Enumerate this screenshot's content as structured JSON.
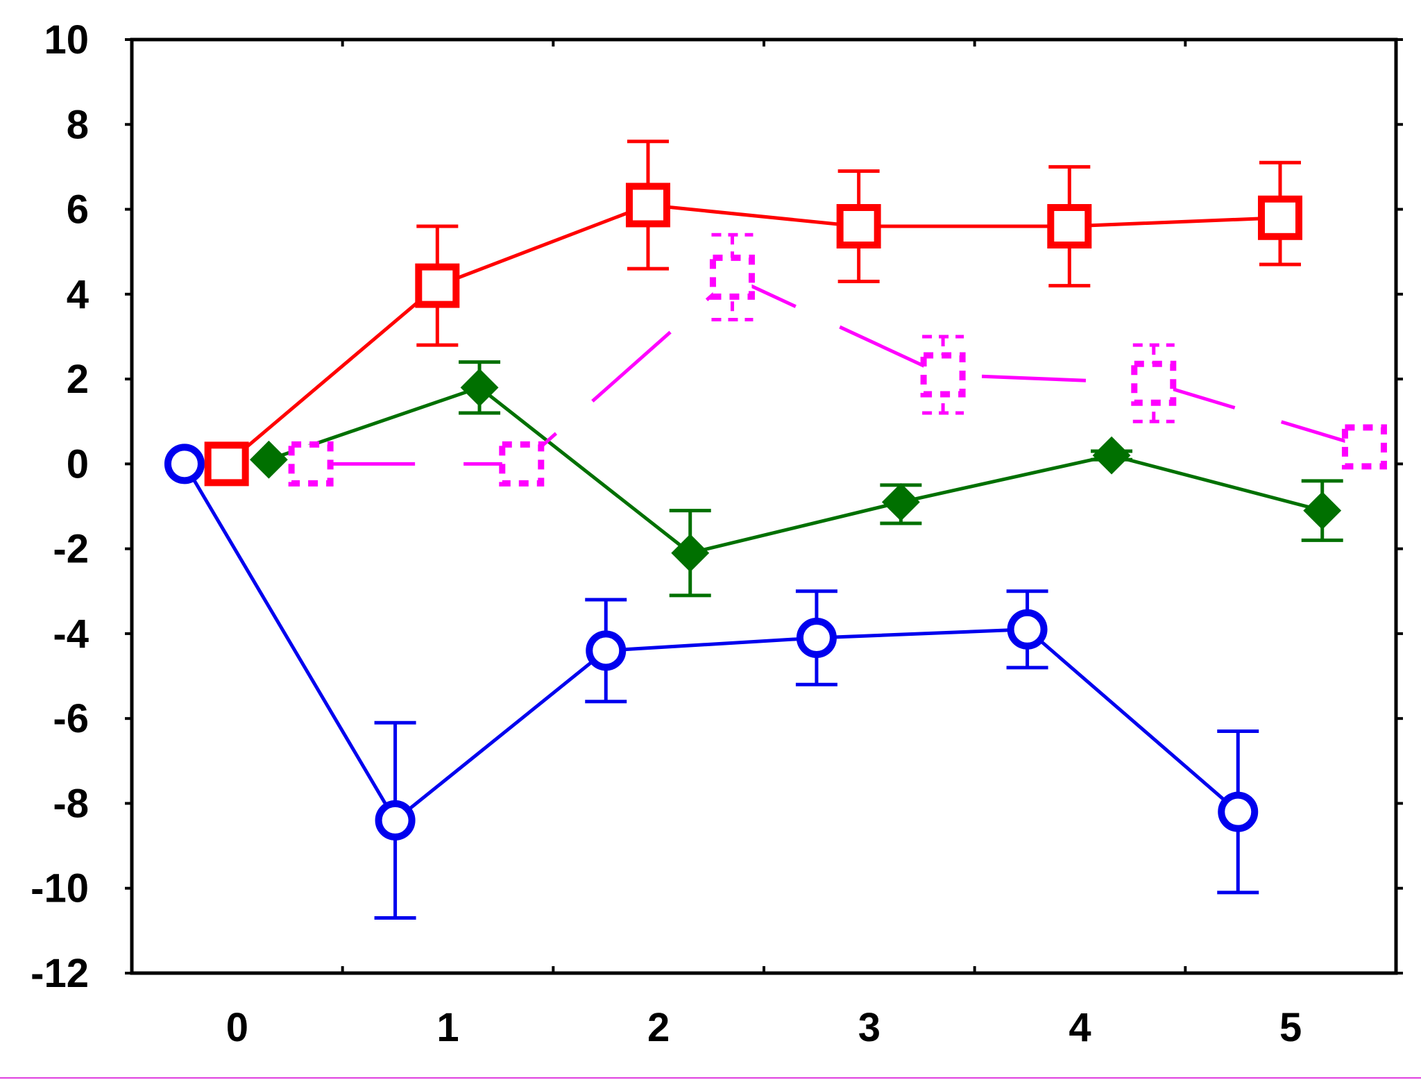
{
  "chart_data": {
    "type": "line",
    "title": "",
    "xlabel": "",
    "ylabel": "",
    "categories": [
      "0",
      "1",
      "2",
      "3",
      "4",
      "5"
    ],
    "x_ticks": [
      "0",
      "1",
      "2",
      "3",
      "4",
      "5"
    ],
    "y_ticks": [
      "10",
      "8",
      "6",
      "4",
      "2",
      "0",
      "-2",
      "-4",
      "-6",
      "-8",
      "-10",
      "-12"
    ],
    "ylim": [
      -12,
      10
    ],
    "grid": false,
    "legend": "none",
    "error_bars": true,
    "series": [
      {
        "marker": "open-circle",
        "color": "#0000ee",
        "line_style": "solid",
        "x": [
          -0.25,
          0.75,
          1.75,
          2.75,
          3.75,
          4.75
        ],
        "values": [
          0.0,
          -8.4,
          -4.4,
          -4.1,
          -3.9,
          -8.2
        ],
        "err_low": [
          0.0,
          2.3,
          1.2,
          1.1,
          0.9,
          1.9
        ],
        "err_high": [
          0.0,
          2.3,
          1.2,
          1.1,
          0.9,
          1.9
        ]
      },
      {
        "marker": "open-square",
        "color": "#ff0000",
        "line_style": "solid",
        "x": [
          -0.05,
          0.95,
          1.95,
          2.95,
          3.95,
          4.95
        ],
        "values": [
          0.0,
          4.2,
          6.1,
          5.6,
          5.6,
          5.8
        ],
        "err_low": [
          0.0,
          1.4,
          1.5,
          1.3,
          1.4,
          1.1
        ],
        "err_high": [
          0.0,
          1.4,
          1.5,
          1.3,
          1.4,
          1.3
        ]
      },
      {
        "marker": "filled-diamond",
        "color": "#007000",
        "line_style": "solid",
        "x": [
          0.15,
          1.15,
          2.15,
          3.15,
          4.15,
          5.15
        ],
        "values": [
          0.1,
          1.8,
          -2.1,
          -0.9,
          0.2,
          -1.1
        ],
        "err_low": [
          0.0,
          0.6,
          1.0,
          0.5,
          0.1,
          0.7
        ],
        "err_high": [
          0.0,
          0.6,
          1.0,
          0.4,
          0.1,
          0.7
        ]
      },
      {
        "marker": "dashed-open-square",
        "color": "#ff00ff",
        "line_style": "dashed",
        "x": [
          0.35,
          1.35,
          2.35,
          3.35,
          4.35,
          5.35
        ],
        "values": [
          0.0,
          0.0,
          4.4,
          2.1,
          1.9,
          0.4
        ],
        "err_low": [
          0.0,
          0.0,
          1.0,
          0.9,
          0.9,
          0.0
        ],
        "err_high": [
          0.0,
          0.0,
          1.0,
          0.9,
          0.9,
          0.0
        ]
      }
    ]
  }
}
